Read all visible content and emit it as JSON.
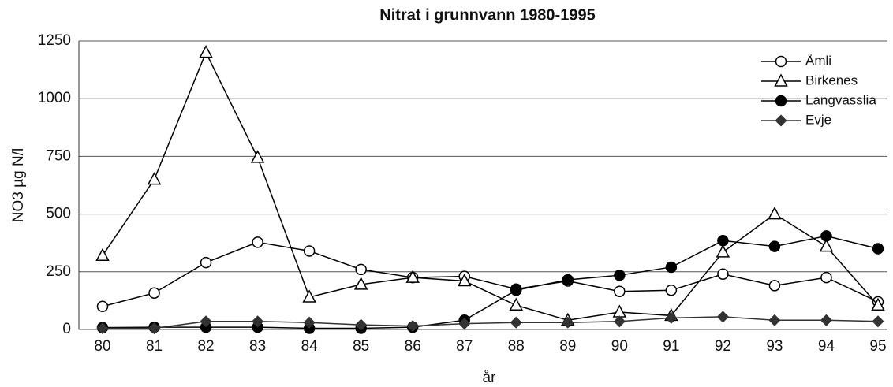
{
  "chart_data": {
    "type": "line",
    "title": "Nitrat i grunnvann 1980-1995",
    "x_label": "år",
    "y_label": "NO3 µg N/l",
    "categories": [
      "80",
      "81",
      "82",
      "83",
      "84",
      "85",
      "86",
      "87",
      "88",
      "89",
      "90",
      "91",
      "92",
      "93",
      "94",
      "95"
    ],
    "series": [
      {
        "name": "Åmli",
        "color": "#000000",
        "marker": "circle-open",
        "values": [
          100,
          158,
          290,
          378,
          340,
          260,
          225,
          230,
          175,
          210,
          165,
          170,
          240,
          190,
          225,
          120
        ]
      },
      {
        "name": "Birkenes",
        "color": "#000000",
        "marker": "triangle-open",
        "values": [
          320,
          650,
          1200,
          745,
          140,
          195,
          225,
          210,
          105,
          40,
          75,
          60,
          335,
          500,
          360,
          105
        ]
      },
      {
        "name": "Langvasslia",
        "color": "#000000",
        "marker": "circle-filled",
        "values": [
          8,
          10,
          10,
          10,
          5,
          5,
          10,
          40,
          170,
          215,
          235,
          270,
          385,
          360,
          405,
          350
        ]
      },
      {
        "name": "Evje",
        "color": "#333333",
        "marker": "diamond-filled",
        "values": [
          5,
          5,
          35,
          35,
          30,
          20,
          15,
          25,
          30,
          30,
          35,
          50,
          55,
          40,
          40,
          35
        ]
      }
    ],
    "ylim": [
      0,
      1250
    ],
    "yticks": [
      0,
      250,
      500,
      750,
      1000,
      1250
    ],
    "grid": true,
    "legend": "top-right"
  }
}
